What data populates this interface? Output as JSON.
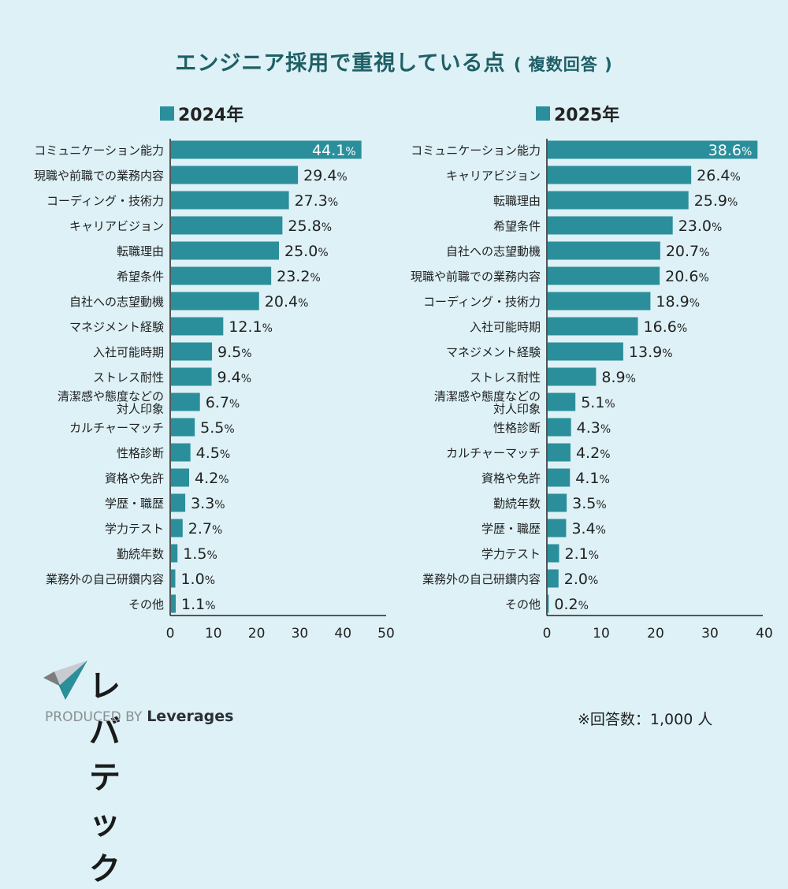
{
  "header": {
    "title": "エンジニア採用で重視している点",
    "subtitle": "( 複数回答 )"
  },
  "footer": {
    "logo_text": "レバテック",
    "produced_by": "PRODUCED BY",
    "brand": "Leverages",
    "footnote": "※回答数：1,000 人"
  },
  "colors": {
    "bar": "#2b8f9b",
    "background": "#ddf1f6",
    "title": "#1f5f66",
    "text": "#222222"
  },
  "chart_data": [
    {
      "type": "bar",
      "orientation": "horizontal",
      "title": "2024年",
      "legend": "2024年",
      "unit": "%",
      "xlim": [
        0,
        50
      ],
      "xticks": [
        0,
        10,
        20,
        30,
        40,
        50
      ],
      "grid": false,
      "categories": [
        "コミュニケーション能力",
        "現職や前職での業務内容",
        "コーディング・技術力",
        "キャリアビジョン",
        "転職理由",
        "希望条件",
        "自社への志望動機",
        "マネジメント経験",
        "入社可能時期",
        "ストレス耐性",
        "清潔感や態度などの\n対人印象",
        "カルチャーマッチ",
        "性格診断",
        "資格や免許",
        "学歴・職歴",
        "学力テスト",
        "勤続年数",
        "業務外の自己研鑽内容",
        "その他"
      ],
      "values": [
        44.1,
        29.4,
        27.3,
        25.8,
        25.0,
        23.2,
        20.4,
        12.1,
        9.5,
        9.4,
        6.7,
        5.5,
        4.5,
        4.2,
        3.3,
        2.7,
        1.5,
        1.0,
        1.1
      ],
      "labels": [
        "44.1",
        "29.4",
        "27.3",
        "25.8",
        "25.0",
        "23.2",
        "20.4",
        "12.1",
        "9.5",
        "9.4",
        "6.7",
        "5.5",
        "4.5",
        "4.2",
        "3.3",
        "2.7",
        "1.5",
        "1.0",
        "1.1"
      ]
    },
    {
      "type": "bar",
      "orientation": "horizontal",
      "title": "2025年",
      "legend": "2025年",
      "unit": "%",
      "xlim": [
        0,
        40
      ],
      "xticks": [
        0,
        10,
        20,
        30,
        40
      ],
      "grid": false,
      "categories": [
        "コミュニケーション能力",
        "キャリアビジョン",
        "転職理由",
        "希望条件",
        "自社への志望動機",
        "現職や前職での業務内容",
        "コーディング・技術力",
        "入社可能時期",
        "マネジメント経験",
        "ストレス耐性",
        "清潔感や態度などの\n対人印象",
        "性格診断",
        "カルチャーマッチ",
        "資格や免許",
        "勤続年数",
        "学歴・職歴",
        "学力テスト",
        "業務外の自己研鑽内容",
        "その他"
      ],
      "values": [
        38.6,
        26.4,
        25.9,
        23.0,
        20.7,
        20.6,
        18.9,
        16.6,
        13.9,
        8.9,
        5.1,
        4.3,
        4.2,
        4.1,
        3.5,
        3.4,
        2.1,
        2.0,
        0.2
      ],
      "labels": [
        "38.6",
        "26.4",
        "25.9",
        "23.0",
        "20.7",
        "20.6",
        "18.9",
        "16.6",
        "13.9",
        "8.9",
        "5.1",
        "4.3",
        "4.2",
        "4.1",
        "3.5",
        "3.4",
        "2.1",
        "2.0",
        "0.2"
      ]
    }
  ]
}
